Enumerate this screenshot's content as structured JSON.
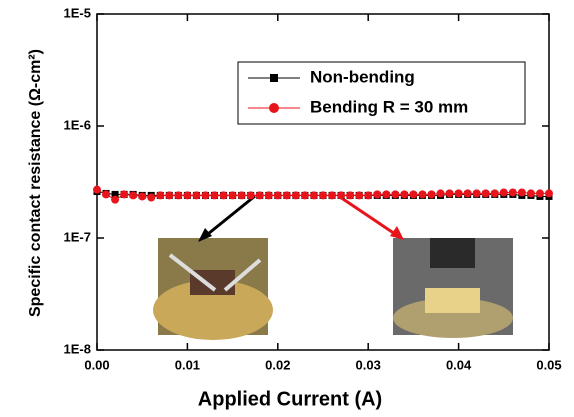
{
  "chart_data": {
    "type": "line",
    "xlabel": "Applied Current (A)",
    "ylabel": "Specific contact resistance (Ω-cm²)",
    "x": [
      0,
      0.001,
      0.002,
      0.003,
      0.004,
      0.005,
      0.006,
      0.007,
      0.008,
      0.009,
      0.01,
      0.011,
      0.012,
      0.013,
      0.014,
      0.015,
      0.016,
      0.017,
      0.018,
      0.019,
      0.02,
      0.021,
      0.022,
      0.023,
      0.024,
      0.025,
      0.026,
      0.027,
      0.028,
      0.029,
      0.03,
      0.031,
      0.032,
      0.033,
      0.034,
      0.035,
      0.036,
      0.037,
      0.038,
      0.039,
      0.04,
      0.041,
      0.042,
      0.043,
      0.044,
      0.045,
      0.046,
      0.047,
      0.048,
      0.049,
      0.05
    ],
    "series": [
      {
        "name": "Non-bending",
        "color": "#000000",
        "marker": "square",
        "values": [
          2.6e-07,
          2.5e-07,
          2.45e-07,
          2.45e-07,
          2.45e-07,
          2.4e-07,
          2.4e-07,
          2.4e-07,
          2.4e-07,
          2.4e-07,
          2.4e-07,
          2.4e-07,
          2.4e-07,
          2.4e-07,
          2.4e-07,
          2.4e-07,
          2.4e-07,
          2.4e-07,
          2.4e-07,
          2.4e-07,
          2.4e-07,
          2.4e-07,
          2.4e-07,
          2.4e-07,
          2.4e-07,
          2.4e-07,
          2.4e-07,
          2.4e-07,
          2.4e-07,
          2.4e-07,
          2.4e-07,
          2.4e-07,
          2.4e-07,
          2.4e-07,
          2.4e-07,
          2.4e-07,
          2.4e-07,
          2.4e-07,
          2.4e-07,
          2.45e-07,
          2.45e-07,
          2.45e-07,
          2.45e-07,
          2.45e-07,
          2.45e-07,
          2.45e-07,
          2.45e-07,
          2.4e-07,
          2.4e-07,
          2.35e-07,
          2.35e-07
        ]
      },
      {
        "name": "Bending R = 30 mm",
        "color": "#e8141b",
        "marker": "circle",
        "values": [
          2.7e-07,
          2.45e-07,
          2.2e-07,
          2.45e-07,
          2.4e-07,
          2.35e-07,
          2.3e-07,
          2.4e-07,
          2.4e-07,
          2.4e-07,
          2.4e-07,
          2.4e-07,
          2.4e-07,
          2.4e-07,
          2.4e-07,
          2.4e-07,
          2.4e-07,
          2.4e-07,
          2.4e-07,
          2.4e-07,
          2.4e-07,
          2.4e-07,
          2.4e-07,
          2.4e-07,
          2.4e-07,
          2.4e-07,
          2.4e-07,
          2.4e-07,
          2.4e-07,
          2.4e-07,
          2.4e-07,
          2.45e-07,
          2.45e-07,
          2.45e-07,
          2.45e-07,
          2.45e-07,
          2.45e-07,
          2.45e-07,
          2.5e-07,
          2.5e-07,
          2.5e-07,
          2.5e-07,
          2.5e-07,
          2.5e-07,
          2.5e-07,
          2.55e-07,
          2.55e-07,
          2.55e-07,
          2.5e-07,
          2.5e-07,
          2.5e-07
        ]
      }
    ],
    "xlim": [
      0,
      0.05
    ],
    "xticks": [
      {
        "value": 0,
        "label": "0.00"
      },
      0.01,
      0.02,
      0.03,
      0.04,
      0.05
    ],
    "ylim": [
      1e-08,
      1e-05
    ],
    "yticks": [
      {
        "value": 1e-08,
        "label": "1E-8"
      },
      {
        "value": 1e-07,
        "label": "1E-7"
      },
      {
        "value": 1e-06,
        "label": "1E-6"
      },
      {
        "value": 1e-05,
        "label": "1E-5"
      }
    ],
    "log_y": true,
    "grid": false,
    "legend": "upper right"
  }
}
